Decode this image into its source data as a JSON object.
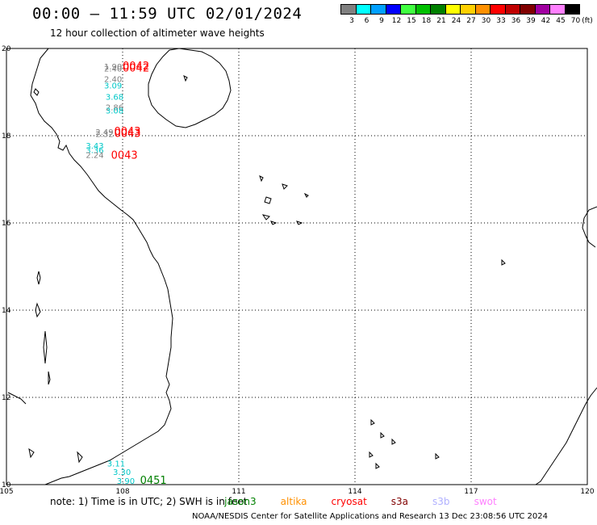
{
  "header": {
    "title": "00:00 – 11:59 UTC 02/01/2024",
    "subtitle": "12 hour collection of altimeter wave heights"
  },
  "legend": {
    "items": [
      {
        "label": "3",
        "color": "#808080"
      },
      {
        "label": "6",
        "color": "#00ffff"
      },
      {
        "label": "9",
        "color": "#00a0ff"
      },
      {
        "label": "12",
        "color": "#0000ff"
      },
      {
        "label": "15",
        "color": "#40ff40"
      },
      {
        "label": "18",
        "color": "#00c000"
      },
      {
        "label": "21",
        "color": "#008000"
      },
      {
        "label": "24",
        "color": "#ffff00"
      },
      {
        "label": "27",
        "color": "#ffd000"
      },
      {
        "label": "30",
        "color": "#ff9000"
      },
      {
        "label": "33",
        "color": "#ff0000"
      },
      {
        "label": "36",
        "color": "#c00000"
      },
      {
        "label": "39",
        "color": "#800000"
      },
      {
        "label": "42",
        "color": "#a000a0"
      },
      {
        "label": "45",
        "color": "#ff80ff"
      },
      {
        "label": "70",
        "color": "#000000"
      }
    ],
    "unit": "(ft)"
  },
  "map": {
    "lon_ticks": [
      "105",
      "108",
      "111",
      "114",
      "117",
      "120"
    ],
    "lat_ticks": [
      "20",
      "18",
      "16",
      "14",
      "12",
      "10"
    ],
    "observations": [
      {
        "text": "1.90",
        "color": "#808080",
        "lon": 107.52,
        "lat": 19.52
      },
      {
        "text": "2.40",
        "color": "#808080",
        "lon": 107.52,
        "lat": 19.47
      },
      {
        "text": "0042",
        "color": "#ff0000",
        "lon": 108.0,
        "lat": 19.52
      },
      {
        "text": "0042",
        "color": "#ff0000",
        "lon": 108.0,
        "lat": 19.47
      },
      {
        "text": "2.40",
        "color": "#808080",
        "lon": 107.52,
        "lat": 19.23
      },
      {
        "text": "3.09",
        "color": "#00c8c8",
        "lon": 107.52,
        "lat": 19.08
      },
      {
        "text": "3.68",
        "color": "#00c8c8",
        "lon": 107.56,
        "lat": 18.82
      },
      {
        "text": "2.86",
        "color": "#808080",
        "lon": 107.56,
        "lat": 18.58
      },
      {
        "text": "3.08",
        "color": "#00c8c8",
        "lon": 107.56,
        "lat": 18.51
      },
      {
        "text": "2.49",
        "color": "#808080",
        "lon": 107.3,
        "lat": 18.02
      },
      {
        "text": "2.32",
        "color": "#808080",
        "lon": 107.3,
        "lat": 17.97
      },
      {
        "text": "0043",
        "color": "#ff0000",
        "lon": 107.78,
        "lat": 18.02
      },
      {
        "text": "0043",
        "color": "#ff0000",
        "lon": 107.78,
        "lat": 17.97
      },
      {
        "text": "3.43",
        "color": "#00c8c8",
        "lon": 107.05,
        "lat": 17.7
      },
      {
        "text": "3.36",
        "color": "#00c8c8",
        "lon": 107.05,
        "lat": 17.6
      },
      {
        "text": "2.24",
        "color": "#808080",
        "lon": 107.05,
        "lat": 17.49
      },
      {
        "text": "0043",
        "color": "#ff0000",
        "lon": 107.7,
        "lat": 17.47
      },
      {
        "text": "3.11",
        "color": "#00c8c8",
        "lon": 107.6,
        "lat": 10.42
      },
      {
        "text": "3.30",
        "color": "#00c8c8",
        "lon": 107.75,
        "lat": 10.22
      },
      {
        "text": "3.90",
        "color": "#00c8c8",
        "lon": 107.85,
        "lat": 10.02
      },
      {
        "text": "0451",
        "color": "#008000",
        "lon": 108.45,
        "lat": 10.02
      }
    ]
  },
  "notes": {
    "prefix": "note:  1) Time is in UTC; 2) SWH is in feet",
    "sats": [
      {
        "name": "jason3",
        "color": "#008000"
      },
      {
        "name": "altika",
        "color": "#ff9000"
      },
      {
        "name": "cryosat",
        "color": "#ff0000"
      },
      {
        "name": "s3a",
        "color": "#800000"
      },
      {
        "name": "s3b",
        "color": "#b0b0ff"
      },
      {
        "name": "swot",
        "color": "#ff80ff"
      }
    ]
  },
  "footer": {
    "text": "NOAA/NESDIS Center for Satellite Applications and Research    13 Dec 23:08:56 UTC 2024"
  }
}
